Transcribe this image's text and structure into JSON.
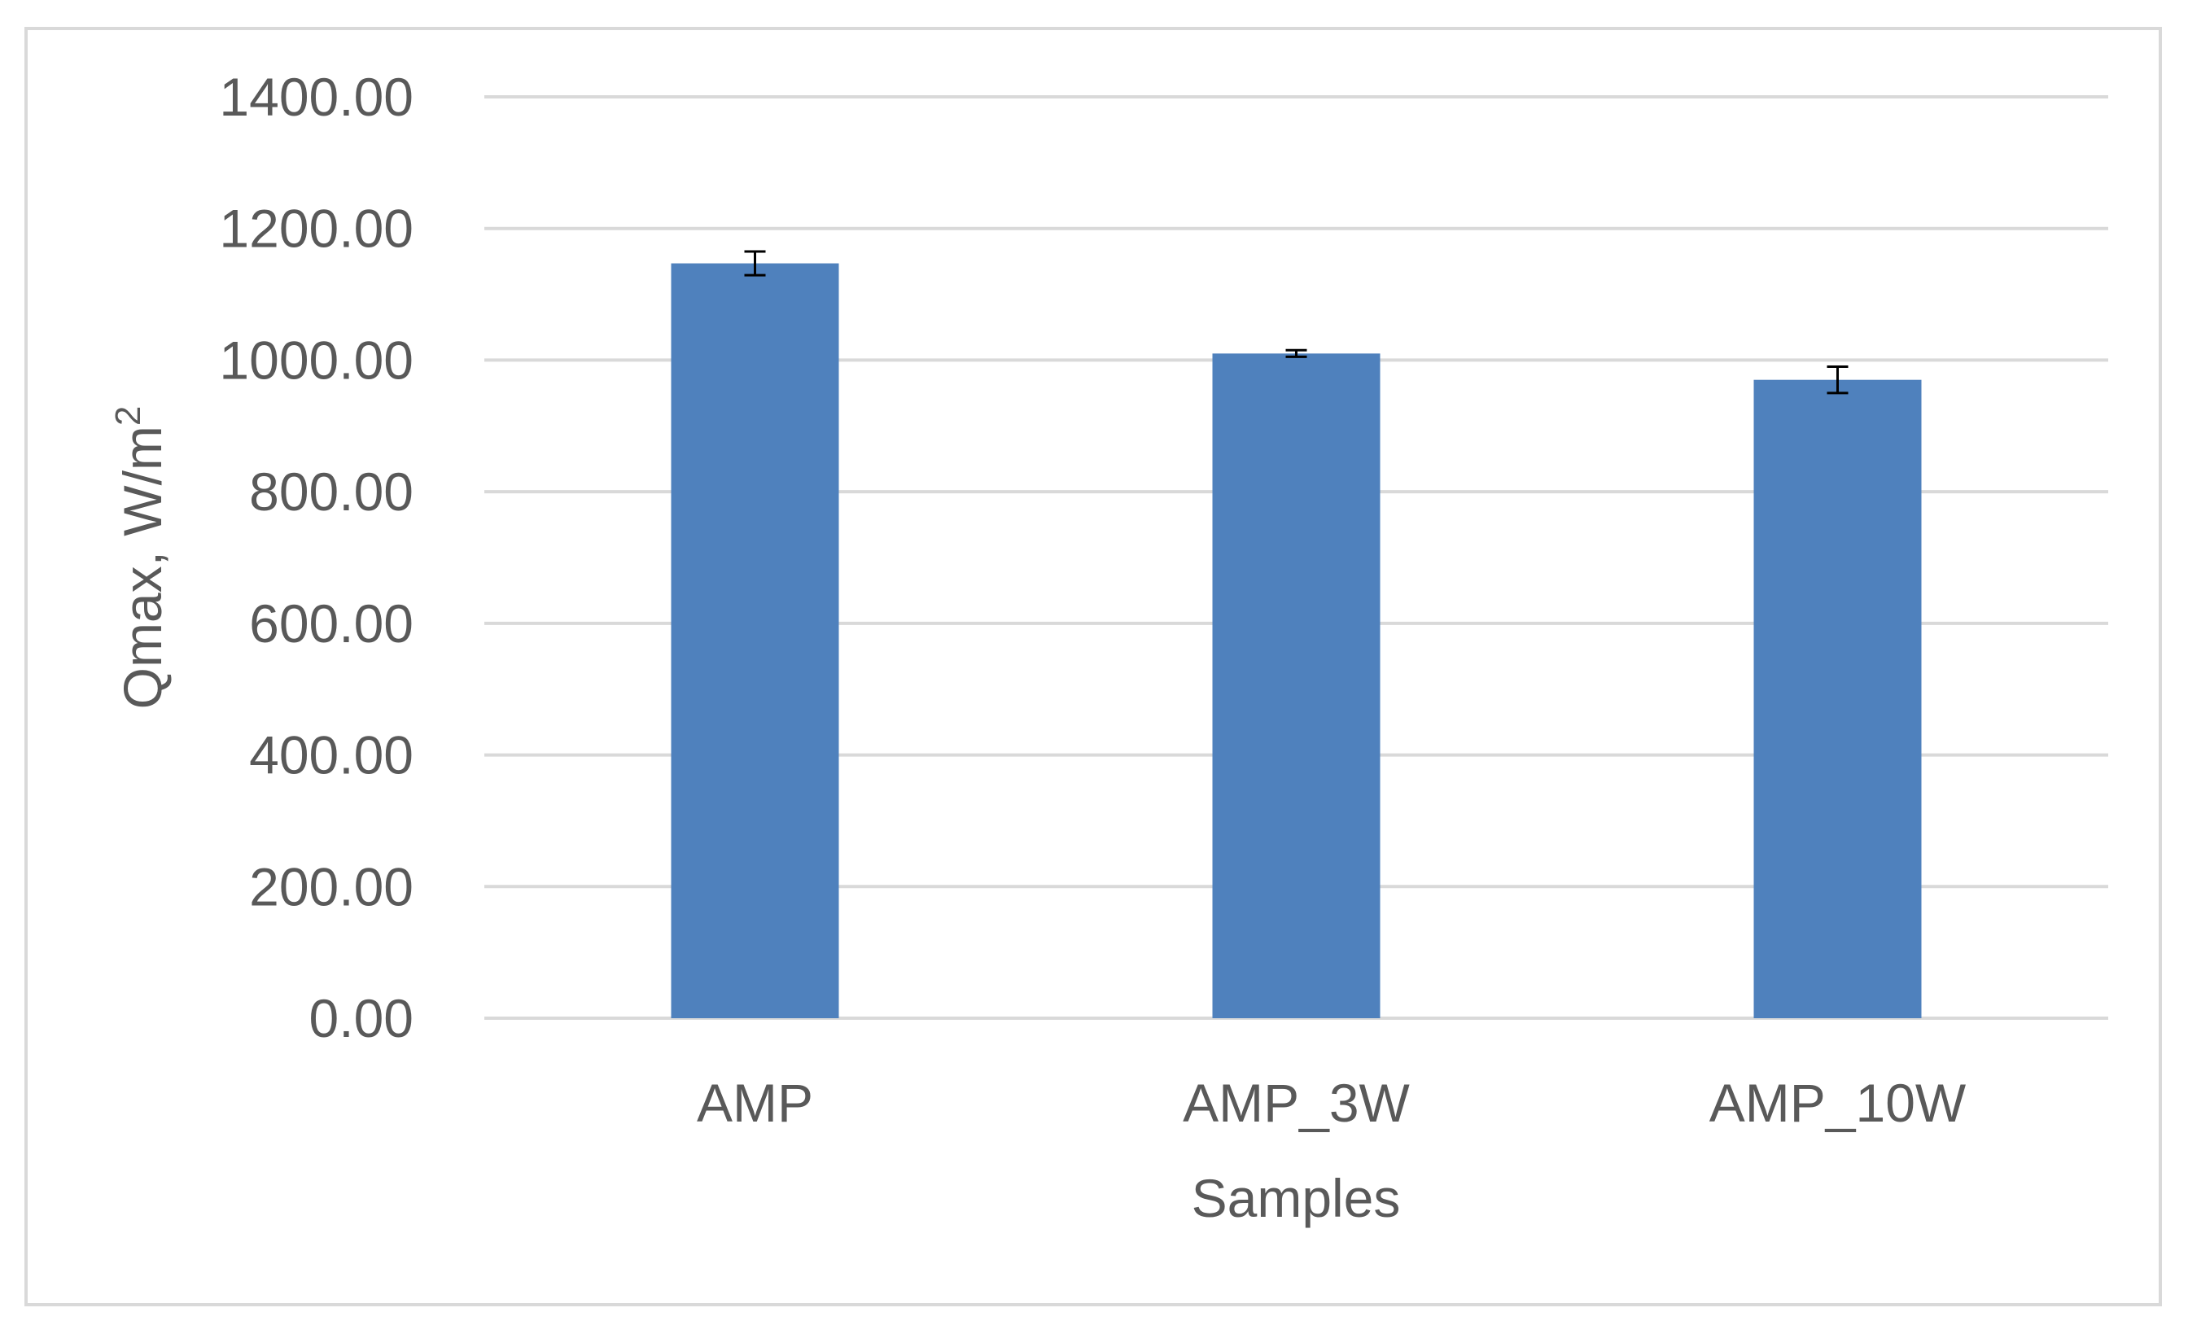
{
  "chart_data": {
    "type": "bar",
    "title": "",
    "xlabel": "Samples",
    "ylabel": "Qmax, W/m",
    "ylabel_superscript": "2",
    "categories": [
      "AMP",
      "AMP_3W",
      "AMP_10W"
    ],
    "values": [
      1147,
      1010,
      970
    ],
    "error": [
      18,
      5,
      20
    ],
    "ylim": [
      0,
      1400
    ],
    "yticks": [
      "0.00",
      "200.00",
      "400.00",
      "600.00",
      "800.00",
      "1000.00",
      "1200.00",
      "1400.00"
    ],
    "ytick_values": [
      0,
      200,
      400,
      600,
      800,
      1000,
      1200,
      1400
    ],
    "grid": true,
    "legend": "none",
    "colors": {
      "bar": "#4f81bd",
      "grid": "#d9d9d9",
      "text": "#595959",
      "error_bar": "#000000"
    }
  }
}
